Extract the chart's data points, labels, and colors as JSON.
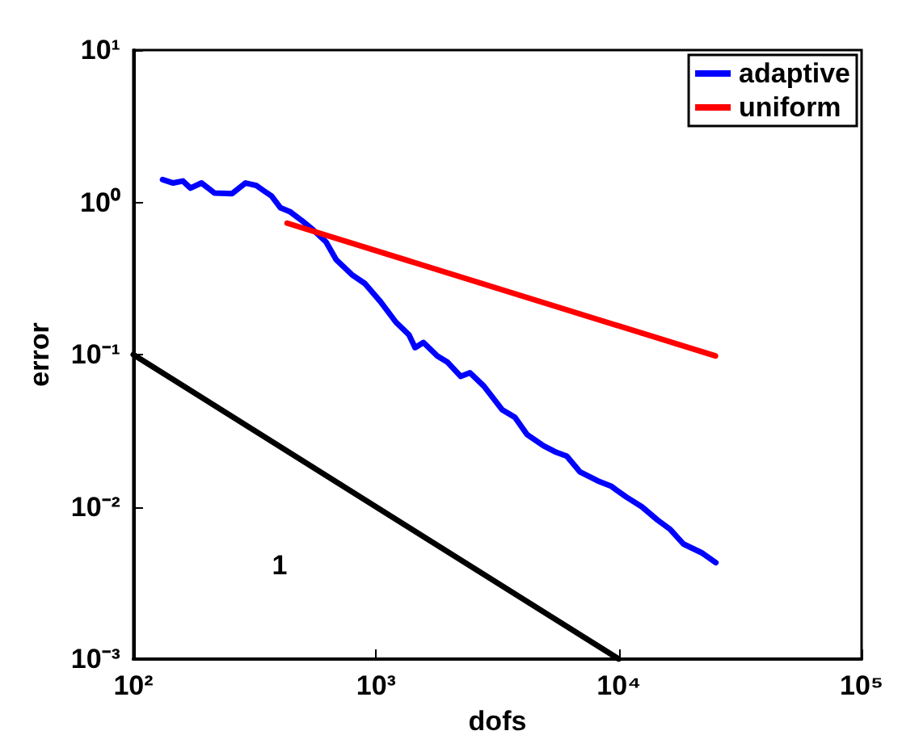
{
  "chart_data": {
    "type": "line",
    "xlabel": "dofs",
    "ylabel": "error",
    "log": "xy",
    "xlim": [
      100,
      100000
    ],
    "ylim": [
      0.001,
      10
    ],
    "xticks": [
      {
        "value": 100,
        "label": "10²"
      },
      {
        "value": 1000,
        "label": "10³"
      },
      {
        "value": 10000,
        "label": "10⁴"
      },
      {
        "value": 100000,
        "label": "10⁵"
      }
    ],
    "yticks": [
      {
        "value": 0.001,
        "label": "10⁻³"
      },
      {
        "value": 0.01,
        "label": "10⁻²"
      },
      {
        "value": 0.1,
        "label": "10⁻¹"
      },
      {
        "value": 1,
        "label": "10⁰"
      },
      {
        "value": 10,
        "label": "10¹"
      }
    ],
    "grid": false,
    "legend": "top right",
    "marker": "none",
    "line_style": "solid",
    "annotations": [
      "1"
    ],
    "series": [
      {
        "name": "adaptive",
        "color": "#0000ff",
        "x": [
          132,
          146,
          160,
          172,
          191,
          216,
          255,
          290,
          321,
          345,
          371,
          404,
          441,
          499,
          550,
          622,
          685,
          795,
          899,
          1042,
          1208,
          1366,
          1448,
          1567,
          1788,
          1972,
          2230,
          2436,
          2782,
          3304,
          3734,
          4182,
          4893,
          5531,
          6105,
          6907,
          8199,
          9268,
          10740,
          12450,
          14420,
          16300,
          18450,
          21900,
          25100
        ],
        "values": [
          1.41,
          1.34,
          1.38,
          1.24,
          1.34,
          1.15,
          1.14,
          1.34,
          1.29,
          1.19,
          1.1,
          0.92,
          0.87,
          0.75,
          0.66,
          0.55,
          0.42,
          0.335,
          0.293,
          0.223,
          0.163,
          0.135,
          0.111,
          0.12,
          0.098,
          0.089,
          0.072,
          0.076,
          0.062,
          0.0435,
          0.0387,
          0.0299,
          0.0252,
          0.0228,
          0.0215,
          0.017,
          0.0148,
          0.0137,
          0.0116,
          0.01,
          0.0082,
          0.0071,
          0.0057,
          0.005,
          0.0043
        ]
      },
      {
        "name": "uniform",
        "color": "#ff0000",
        "x": [
          430,
          25000
        ],
        "values": [
          0.73,
          0.098
        ]
      },
      {
        "color": "#000000",
        "x": [
          100,
          10000
        ],
        "values": [
          0.1,
          0.001
        ]
      }
    ]
  }
}
